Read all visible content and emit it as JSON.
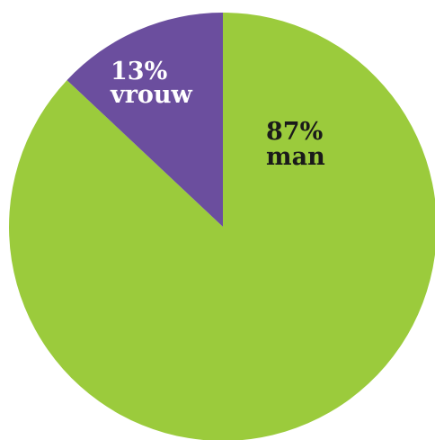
{
  "chart_data": {
    "type": "pie",
    "categories": [
      "man",
      "vrouw"
    ],
    "values": [
      87,
      13
    ],
    "value_labels": [
      "87%",
      "13%"
    ],
    "colors": [
      "#9BCB3C",
      "#6B4E9E"
    ],
    "label_colors": [
      "#1a1a1a",
      "#ffffff"
    ],
    "start": "12 o'clock",
    "direction": "clockwise"
  }
}
